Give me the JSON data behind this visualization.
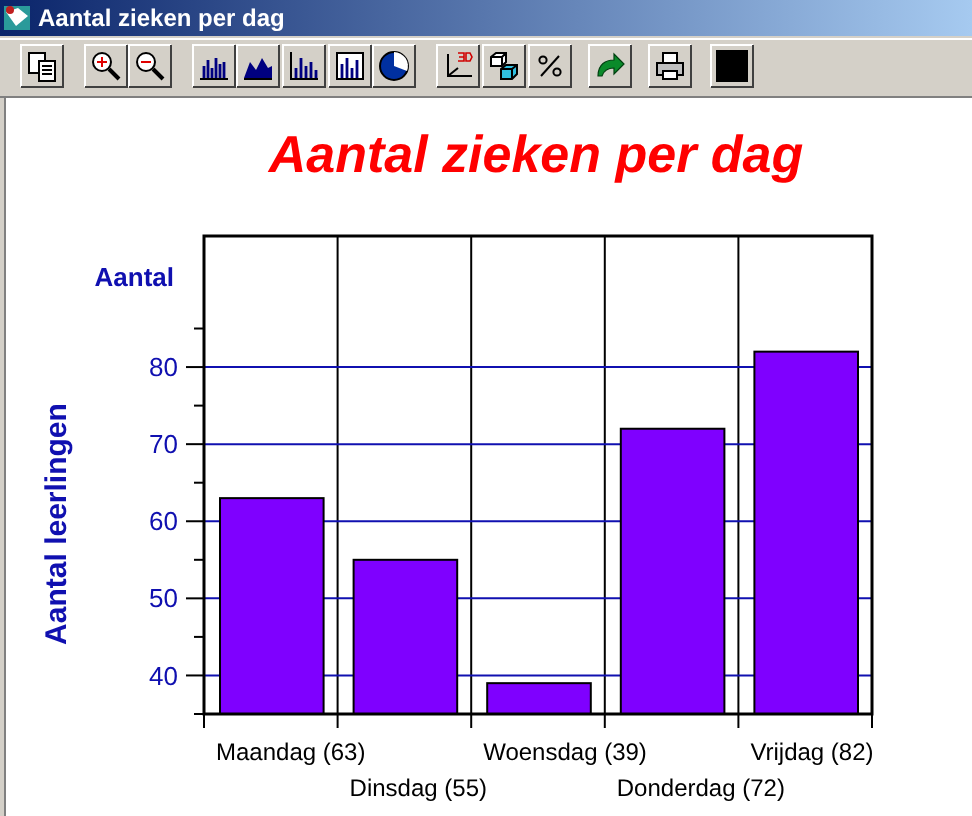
{
  "chart_data": {
    "type": "bar",
    "title": "Aantal zieken per dag",
    "ylabel": "Aantal leerlingen",
    "annotations": [
      "Aantal zieken per dag",
      "Aantal"
    ],
    "categories": [
      "Maandag (63)",
      "Dinsdag (55)",
      "Woensdag (39)",
      "Donderdag (72)",
      "Vrijdag (82)"
    ],
    "values": [
      63,
      55,
      39,
      72,
      82
    ],
    "color": "#7f00ff",
    "ylim": [
      35,
      97
    ],
    "yticks": [
      {
        "value": 35,
        "label": null
      },
      40,
      {
        "value": 45,
        "label": null
      },
      50,
      {
        "value": 55,
        "label": null
      },
      60,
      {
        "value": 65,
        "label": null
      },
      70,
      {
        "value": 75,
        "label": null
      },
      80,
      {
        "value": 85,
        "label": null
      }
    ],
    "grid": true
  }
}
